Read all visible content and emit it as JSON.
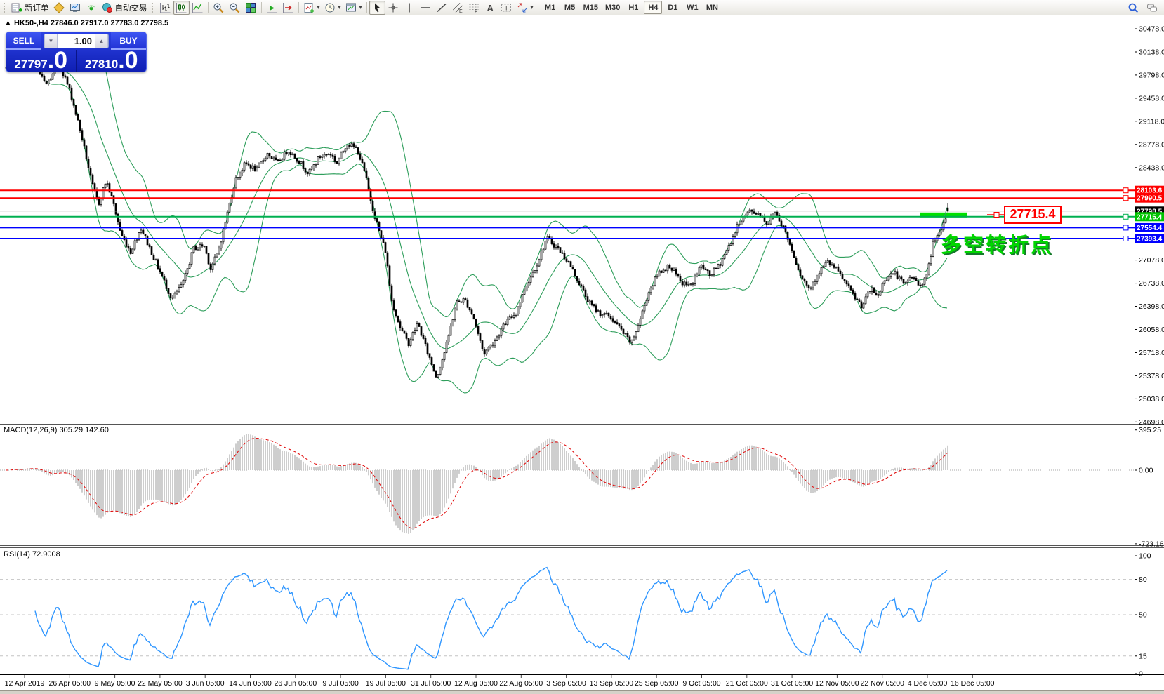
{
  "toolbar": {
    "new_order_label": "新订单",
    "auto_trading_label": "自动交易",
    "timeframes": [
      "M1",
      "M5",
      "M15",
      "M30",
      "H1",
      "H4",
      "D1",
      "W1",
      "MN"
    ],
    "active_timeframe": "H4"
  },
  "chart": {
    "title_arrow": "▲",
    "title": "HK50-,H4  27846.0 27917.0 27783.0 27798.5"
  },
  "trade_panel": {
    "sell_label": "SELL",
    "buy_label": "BUY",
    "volume": "1.00",
    "sell_int": "27797",
    "sell_frac": ".0",
    "buy_int": "27810",
    "buy_frac": ".0"
  },
  "price_scale": {
    "ticks": [
      30478.0,
      30138.0,
      29798.0,
      29458.0,
      29118.0,
      28778.0,
      28438.0,
      27078.0,
      26738.0,
      26398.0,
      26058.0,
      25718.0,
      25378.0,
      25038.0,
      24698.0
    ]
  },
  "hlines": [
    {
      "price": 28103.6,
      "color": "#ff0000",
      "width": 2,
      "tag_bg": "#ff0000",
      "is_price_line": false,
      "highlight": false
    },
    {
      "price": 27990.5,
      "color": "#ff0000",
      "width": 2,
      "tag_bg": "#ff0000",
      "is_price_line": false,
      "highlight": false
    },
    {
      "price": 27798.5,
      "color": "#b4b4b4",
      "width": 1,
      "tag_bg": "#000000",
      "is_price_line": true,
      "highlight": false
    },
    {
      "price": 27715.4,
      "color": "#00b050",
      "width": 2,
      "tag_bg": "#00c400",
      "is_price_line": false,
      "highlight": true
    },
    {
      "price": 27554.4,
      "color": "#0000ff",
      "width": 2,
      "tag_bg": "#0000ff",
      "is_price_line": false,
      "highlight": false
    },
    {
      "price": 27393.4,
      "color": "#0000ff",
      "width": 2,
      "tag_bg": "#0000ff",
      "is_price_line": false,
      "highlight": false
    }
  ],
  "callout": {
    "text": "27715.4"
  },
  "annotation": {
    "text": "多空转折点"
  },
  "macd": {
    "label": "MACD(12,26,9) 305.29 142.60",
    "axis": [
      [
        395.25,
        "395.25"
      ],
      [
        0,
        "0.00"
      ],
      [
        -723.16,
        "-723.16"
      ]
    ]
  },
  "rsi": {
    "label": "RSI(14) 72.9008",
    "axis": [
      100,
      80,
      50,
      15,
      0
    ],
    "levels": [
      80,
      50,
      15
    ]
  },
  "time_axis": {
    "labels": [
      "12 Apr 2019",
      "26 Apr 05:00",
      "9 May 05:00",
      "22 May 05:00",
      "3 Jun 05:00",
      "14 Jun 05:00",
      "26 Jun 05:00",
      "9 Jul 05:00",
      "19 Jul 05:00",
      "31 Jul 05:00",
      "12 Aug 05:00",
      "22 Aug 05:00",
      "3 Sep 05:00",
      "13 Sep 05:00",
      "25 Sep 05:00",
      "9 Oct 05:00",
      "21 Oct 05:00",
      "31 Oct 05:00",
      "12 Nov 05:00",
      "22 Nov 05:00",
      "4 Dec 05:00",
      "16 Dec 05:00"
    ]
  },
  "colors": {
    "bollinger": "#2e9e5b",
    "rsi_line": "#2f96ff",
    "macd_hist": "#c6c6c6",
    "macd_signal": "#e01010",
    "highlight": "#00e000",
    "grid_dash": "#c4c4c4"
  },
  "chart_data": {
    "type": "candlestick",
    "symbol": "HK50",
    "timeframe": "H4",
    "ohlc_last": {
      "open": 27846.0,
      "high": 27917.0,
      "low": 27783.0,
      "close": 27798.5
    },
    "bid": 27797.0,
    "ask": 27810.0,
    "ylim": [
      24712,
      30674
    ],
    "y_ticks": [
      30478.0,
      30138.0,
      29798.0,
      29458.0,
      29118.0,
      28778.0,
      28438.0,
      27078.0,
      26738.0,
      26398.0,
      26058.0,
      25718.0,
      25378.0,
      25038.0,
      24698.0
    ],
    "hline_prices": [
      28103.6,
      27990.5,
      27798.5,
      27715.4,
      27554.4,
      27393.4
    ],
    "indicators": [
      {
        "name": "Bollinger Bands",
        "period": 20,
        "deviation": 2
      },
      {
        "name": "MACD",
        "fast": 12,
        "slow": 26,
        "signal": 9,
        "value": 305.29,
        "signal_value": 142.6
      },
      {
        "name": "RSI",
        "period": 14,
        "value": 72.9008
      }
    ],
    "macd_axis_range": [
      395.25,
      -723.16
    ],
    "rsi_levels": [
      80,
      50,
      15
    ],
    "num_candles": 448,
    "seed": 7,
    "price_path": [
      [
        0,
        29900
      ],
      [
        0.028,
        30000
      ],
      [
        0.042,
        29650
      ],
      [
        0.057,
        29950
      ],
      [
        0.068,
        29550
      ],
      [
        0.08,
        28900
      ],
      [
        0.091,
        28200
      ],
      [
        0.098,
        27900
      ],
      [
        0.106,
        28250
      ],
      [
        0.113,
        27950
      ],
      [
        0.122,
        27450
      ],
      [
        0.132,
        27200
      ],
      [
        0.143,
        27550
      ],
      [
        0.154,
        27200
      ],
      [
        0.165,
        26850
      ],
      [
        0.176,
        26500
      ],
      [
        0.188,
        26750
      ],
      [
        0.199,
        27250
      ],
      [
        0.21,
        27300
      ],
      [
        0.217,
        26950
      ],
      [
        0.225,
        27200
      ],
      [
        0.232,
        27600
      ],
      [
        0.243,
        28250
      ],
      [
        0.254,
        28500
      ],
      [
        0.266,
        28400
      ],
      [
        0.277,
        28650
      ],
      [
        0.288,
        28500
      ],
      [
        0.299,
        28700
      ],
      [
        0.31,
        28550
      ],
      [
        0.321,
        28350
      ],
      [
        0.333,
        28600
      ],
      [
        0.344,
        28650
      ],
      [
        0.351,
        28500
      ],
      [
        0.362,
        28800
      ],
      [
        0.373,
        28700
      ],
      [
        0.381,
        28350
      ],
      [
        0.388,
        27900
      ],
      [
        0.396,
        27500
      ],
      [
        0.403,
        27200
      ],
      [
        0.409,
        26500
      ],
      [
        0.418,
        26100
      ],
      [
        0.427,
        25850
      ],
      [
        0.437,
        26150
      ],
      [
        0.448,
        25700
      ],
      [
        0.457,
        25350
      ],
      [
        0.467,
        25800
      ],
      [
        0.478,
        26450
      ],
      [
        0.487,
        26500
      ],
      [
        0.496,
        26250
      ],
      [
        0.507,
        25700
      ],
      [
        0.519,
        25900
      ],
      [
        0.53,
        26150
      ],
      [
        0.541,
        26300
      ],
      [
        0.552,
        26700
      ],
      [
        0.563,
        27000
      ],
      [
        0.574,
        27400
      ],
      [
        0.586,
        27250
      ],
      [
        0.597,
        27050
      ],
      [
        0.608,
        26750
      ],
      [
        0.619,
        26450
      ],
      [
        0.63,
        26300
      ],
      [
        0.641,
        26250
      ],
      [
        0.653,
        26050
      ],
      [
        0.664,
        25850
      ],
      [
        0.673,
        26200
      ],
      [
        0.682,
        26600
      ],
      [
        0.693,
        26900
      ],
      [
        0.705,
        27000
      ],
      [
        0.716,
        26750
      ],
      [
        0.727,
        26700
      ],
      [
        0.738,
        27000
      ],
      [
        0.747,
        26850
      ],
      [
        0.757,
        27000
      ],
      [
        0.768,
        27300
      ],
      [
        0.779,
        27650
      ],
      [
        0.79,
        27800
      ],
      [
        0.801,
        27750
      ],
      [
        0.809,
        27600
      ],
      [
        0.816,
        27800
      ],
      [
        0.826,
        27550
      ],
      [
        0.835,
        27200
      ],
      [
        0.844,
        26850
      ],
      [
        0.853,
        26650
      ],
      [
        0.863,
        26900
      ],
      [
        0.872,
        27050
      ],
      [
        0.881,
        26950
      ],
      [
        0.891,
        26750
      ],
      [
        0.9,
        26550
      ],
      [
        0.909,
        26400
      ],
      [
        0.918,
        26650
      ],
      [
        0.926,
        26550
      ],
      [
        0.933,
        26800
      ],
      [
        0.943,
        26900
      ],
      [
        0.954,
        26700
      ],
      [
        0.961,
        26850
      ],
      [
        0.97,
        26700
      ],
      [
        0.978,
        26850
      ],
      [
        0.985,
        27380
      ],
      [
        0.993,
        27480
      ],
      [
        1,
        27798.5
      ]
    ],
    "x_labels": [
      "12 Apr 2019",
      "26 Apr 05:00",
      "9 May 05:00",
      "22 May 05:00",
      "3 Jun 05:00",
      "14 Jun 05:00",
      "26 Jun 05:00",
      "9 Jul 05:00",
      "19 Jul 05:00",
      "31 Jul 05:00",
      "12 Aug 05:00",
      "22 Aug 05:00",
      "3 Sep 05:00",
      "13 Sep 05:00",
      "25 Sep 05:00",
      "9 Oct 05:00",
      "21 Oct 05:00",
      "31 Oct 05:00",
      "12 Nov 05:00",
      "22 Nov 05:00",
      "4 Dec 05:00",
      "16 Dec 05:00"
    ]
  }
}
